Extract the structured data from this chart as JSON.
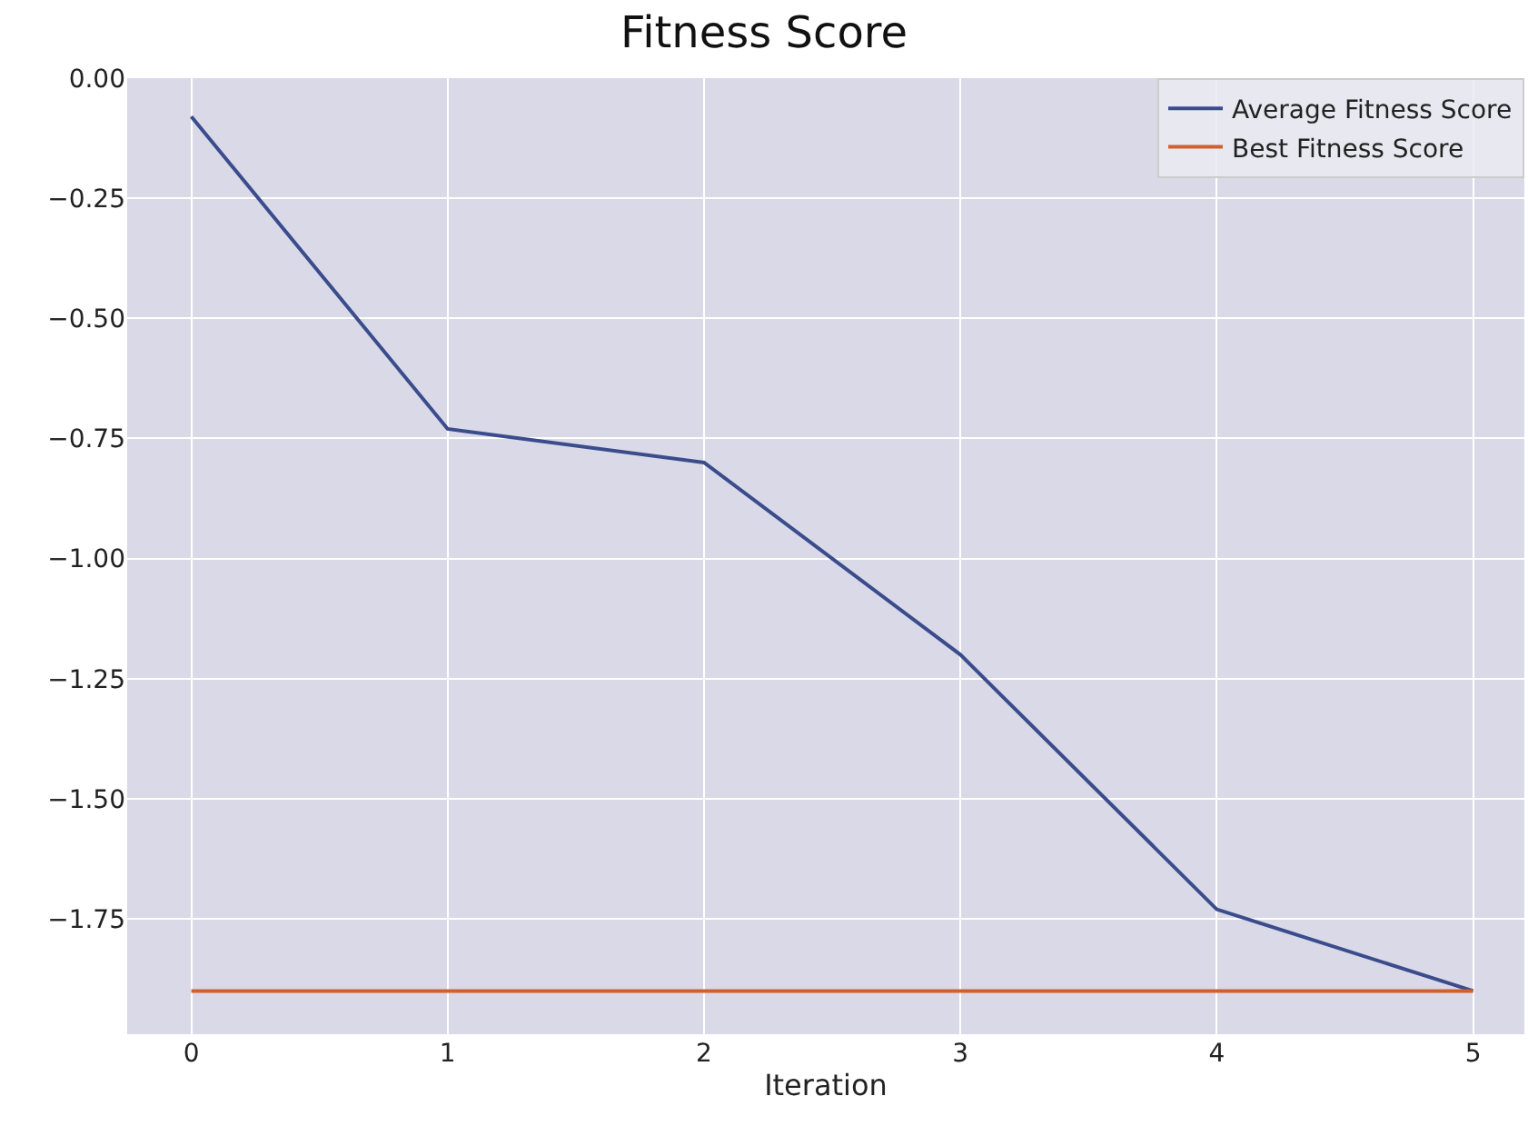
{
  "chart_data": {
    "type": "line",
    "title": "Fitness Score",
    "xlabel": "Iteration",
    "x": [
      0,
      1,
      2,
      3,
      4,
      5
    ],
    "series": [
      {
        "name": "Average Fitness Score",
        "color": "#3a4c8c",
        "values": [
          -0.08,
          -0.73,
          -0.8,
          -1.2,
          -1.73,
          -1.9
        ]
      },
      {
        "name": "Best Fitness Score",
        "color": "#d2602e",
        "values": [
          -1.9,
          -1.9,
          -1.9,
          -1.9,
          -1.9,
          -1.9
        ]
      }
    ],
    "xlim": [
      -0.25,
      5.2
    ],
    "xticks": [
      0,
      1,
      2,
      3,
      4,
      5
    ],
    "ylim": [
      -1.99,
      0.0
    ],
    "yticks": [
      {
        "value": 0,
        "label": "0.00"
      },
      {
        "value": -0.25,
        "label": "−0.25"
      },
      {
        "value": -0.5,
        "label": "−0.50"
      },
      {
        "value": -0.75,
        "label": "−0.75"
      },
      {
        "value": -1.0,
        "label": "−1.00"
      },
      {
        "value": -1.25,
        "label": "−1.25"
      },
      {
        "value": -1.5,
        "label": "−1.50"
      },
      {
        "value": -1.75,
        "label": "−1.75"
      }
    ],
    "grid": true,
    "legend": "top right",
    "marker": "none",
    "line_style": "solid"
  }
}
